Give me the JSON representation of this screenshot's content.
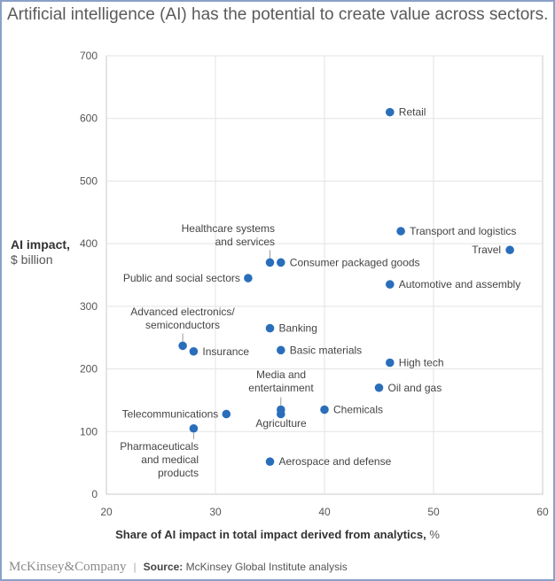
{
  "title": "Artificial intelligence (AI) has the potential to create value across sectors.",
  "footer": {
    "brand": "McKinsey&Company",
    "source_label": "Source:",
    "source_text": "McKinsey Global Institute analysis"
  },
  "chart_data": {
    "type": "scatter",
    "title": "Artificial intelligence (AI) has the potential to create value across sectors.",
    "ylabel": "AI impact,",
    "ylabel_unit": "$ billion",
    "xlabel": "Share of AI impact in total impact derived from analytics,",
    "xlabel_unit": "%",
    "xlim": [
      20,
      60
    ],
    "ylim": [
      0,
      700
    ],
    "xticks": [
      "20",
      "30",
      "40",
      "50",
      "60"
    ],
    "yticks": [
      "0",
      "100",
      "200",
      "300",
      "400",
      "500",
      "600",
      "700"
    ],
    "grid": true,
    "point_color": "#2a6ebb",
    "points": [
      {
        "label": "Retail",
        "x": 46,
        "y": 610
      },
      {
        "label": "Transport and logistics",
        "x": 47,
        "y": 420
      },
      {
        "label": "Travel",
        "x": 57,
        "y": 390
      },
      {
        "label": "Healthcare systems and services",
        "x": 35,
        "y": 370
      },
      {
        "label": "Consumer packaged goods",
        "x": 36,
        "y": 370
      },
      {
        "label": "Public and social sectors",
        "x": 33,
        "y": 345
      },
      {
        "label": "Automotive and assembly",
        "x": 46,
        "y": 335
      },
      {
        "label": "Banking",
        "x": 35,
        "y": 265
      },
      {
        "label": "Advanced electronics/ semiconductors",
        "x": 27,
        "y": 237
      },
      {
        "label": "Insurance",
        "x": 28,
        "y": 228
      },
      {
        "label": "Basic materials",
        "x": 36,
        "y": 230
      },
      {
        "label": "High tech",
        "x": 46,
        "y": 210
      },
      {
        "label": "Oil and gas",
        "x": 45,
        "y": 170
      },
      {
        "label": "Media and entertainment",
        "x": 36,
        "y": 135
      },
      {
        "label": "Agriculture",
        "x": 36,
        "y": 128
      },
      {
        "label": "Chemicals",
        "x": 40,
        "y": 135
      },
      {
        "label": "Telecommunications",
        "x": 31,
        "y": 128
      },
      {
        "label": "Pharmaceuticals and medical products",
        "x": 28,
        "y": 105
      },
      {
        "label": "Aerospace and defense",
        "x": 35,
        "y": 52
      }
    ]
  }
}
